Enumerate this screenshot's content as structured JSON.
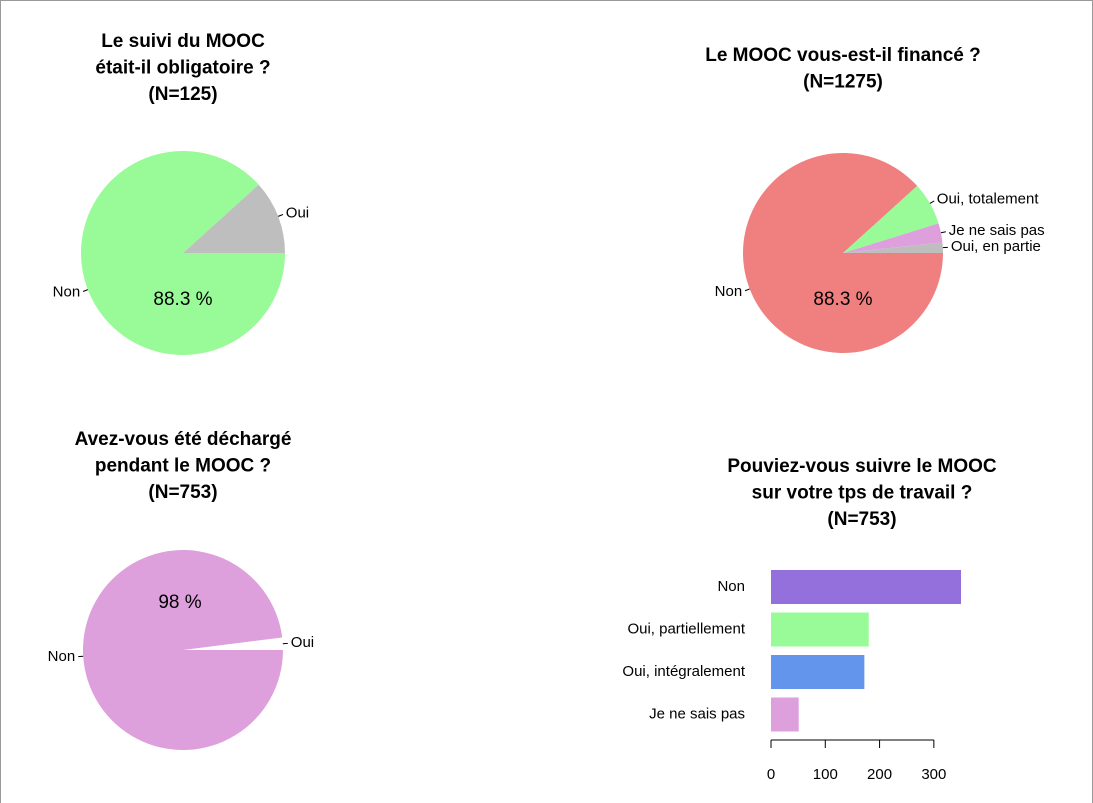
{
  "chart_data": [
    {
      "type": "pie",
      "title": [
        "Le suivi du MOOC",
        "était-il obligatoire ?",
        "(N=125)"
      ],
      "categories": [
        "Oui",
        "Non"
      ],
      "values": [
        11.7,
        88.3
      ],
      "value_labels": [
        null,
        "88.3 %"
      ],
      "colors": [
        "#bebebe",
        "#98fb98"
      ]
    },
    {
      "type": "pie",
      "title": [
        "Le MOOC vous-est-il financé ?",
        "(N=1275)"
      ],
      "categories": [
        "Oui, en partie",
        "Je ne sais pas",
        "Oui, totalement",
        "Non"
      ],
      "values": [
        1.7,
        3.1,
        6.9,
        88.3
      ],
      "value_labels": [
        null,
        null,
        null,
        "88.3 %"
      ],
      "colors": [
        "#bebebe",
        "#dda0dd",
        "#98fb98",
        "#f08080"
      ]
    },
    {
      "type": "pie",
      "title": [
        "Avez-vous été déchargé",
        "pendant le MOOC ?",
        "(N=753)"
      ],
      "categories": [
        "Oui",
        "Non"
      ],
      "values": [
        2,
        98
      ],
      "value_labels": [
        null,
        "98 %"
      ],
      "colors": [
        "#ffffff",
        "#dda0dd"
      ]
    },
    {
      "type": "barh",
      "title": [
        "Pouviez-vous suivre le MOOC",
        "sur votre tps de travail ?",
        "(N=753)"
      ],
      "categories": [
        "Non",
        "Oui, partiellement",
        "Oui, intégralement",
        "Je ne sais pas"
      ],
      "values": [
        350,
        180,
        172,
        51
      ],
      "colors": [
        "#9370db",
        "#98fb98",
        "#6495ed",
        "#dda0dd"
      ],
      "xlim": [
        0,
        350
      ],
      "xticks": [
        0,
        100,
        200,
        300
      ]
    }
  ]
}
